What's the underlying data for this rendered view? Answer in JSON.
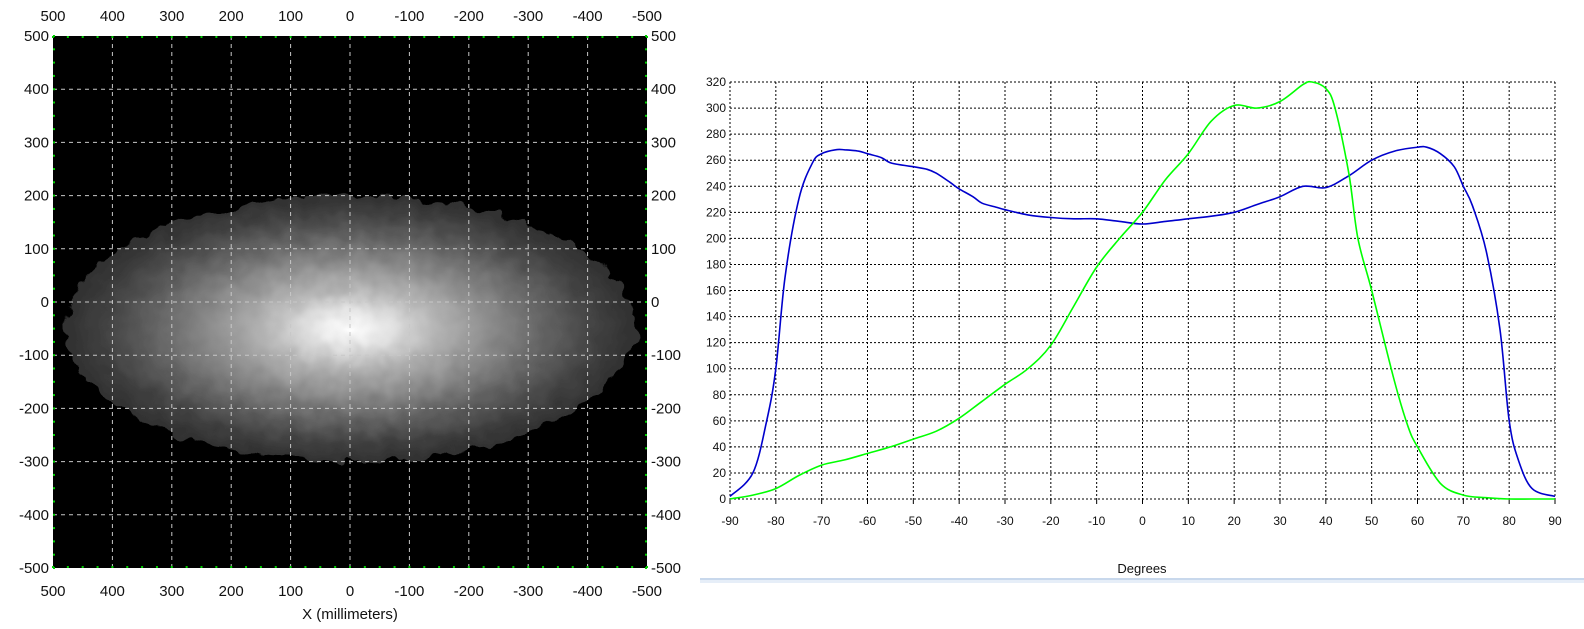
{
  "chart_data": [
    {
      "type": "heatmap",
      "xlabel": "X (millimeters)",
      "ylabel": "",
      "xlim": [
        500,
        -500
      ],
      "ylim": [
        -500,
        500
      ],
      "x_ticks": [
        "500",
        "400",
        "300",
        "200",
        "100",
        "0",
        "-100",
        "-200",
        "-300",
        "-400",
        "-500"
      ],
      "y_ticks": [
        "500",
        "400",
        "300",
        "200",
        "100",
        "0",
        "-100",
        "-200",
        "-300",
        "-400",
        "-500"
      ],
      "grid": true,
      "colors": {
        "background": "#000000",
        "peak": "#ffffff"
      },
      "intensity_blob": {
        "center_x_mm": 0,
        "center_y_mm": -50,
        "x_extent_mm": [
          -480,
          480
        ],
        "y_extent_mm": [
          -300,
          200
        ],
        "peak_level": 1.0
      }
    },
    {
      "type": "line",
      "xlabel": "Degrees",
      "ylabel": "",
      "xlim": [
        -90,
        90
      ],
      "ylim": [
        0,
        320
      ],
      "x_ticks": [
        "-90",
        "-80",
        "-70",
        "-60",
        "-50",
        "-40",
        "-30",
        "-20",
        "-10",
        "0",
        "10",
        "20",
        "30",
        "40",
        "50",
        "60",
        "70",
        "80",
        "90"
      ],
      "y_ticks": [
        "320",
        "300",
        "280",
        "260",
        "240",
        "220",
        "200",
        "180",
        "160",
        "140",
        "120",
        "100",
        "80",
        "60",
        "40",
        "20",
        "0"
      ],
      "grid": true,
      "series": [
        {
          "color": "#0000cc",
          "x": [
            -90,
            -85,
            -82,
            -80,
            -78,
            -75,
            -72,
            -70,
            -67,
            -65,
            -62,
            -60,
            -57,
            -55,
            -52,
            -50,
            -47,
            -45,
            -42,
            -40,
            -37,
            -35,
            -32,
            -30,
            -25,
            -20,
            -15,
            -10,
            -5,
            0,
            5,
            10,
            15,
            20,
            25,
            30,
            35,
            40,
            45,
            50,
            55,
            60,
            62,
            65,
            68,
            70,
            72,
            75,
            78,
            80,
            82,
            85,
            90
          ],
          "y": [
            2,
            20,
            60,
            100,
            170,
            230,
            258,
            265,
            268,
            268,
            267,
            265,
            262,
            258,
            256,
            255,
            253,
            250,
            243,
            238,
            232,
            227,
            224,
            222,
            218,
            216,
            215,
            215,
            213,
            211,
            213,
            215,
            217,
            220,
            226,
            232,
            240,
            239,
            248,
            260,
            267,
            270,
            270,
            265,
            255,
            240,
            225,
            190,
            130,
            60,
            30,
            8,
            2
          ]
        },
        {
          "color": "#00ff00",
          "x": [
            -90,
            -85,
            -80,
            -75,
            -70,
            -65,
            -60,
            -55,
            -50,
            -45,
            -40,
            -35,
            -30,
            -25,
            -20,
            -15,
            -10,
            -5,
            0,
            5,
            10,
            15,
            20,
            25,
            30,
            35,
            37,
            40,
            42,
            45,
            47,
            50,
            55,
            58,
            60,
            65,
            70,
            75,
            80,
            85,
            90
          ],
          "y": [
            0,
            3,
            8,
            18,
            26,
            30,
            35,
            40,
            46,
            52,
            62,
            75,
            88,
            100,
            118,
            148,
            178,
            200,
            220,
            245,
            265,
            290,
            302,
            300,
            305,
            318,
            320,
            315,
            300,
            250,
            200,
            160,
            90,
            55,
            40,
            12,
            3,
            1,
            0,
            0,
            0
          ]
        }
      ]
    }
  ]
}
